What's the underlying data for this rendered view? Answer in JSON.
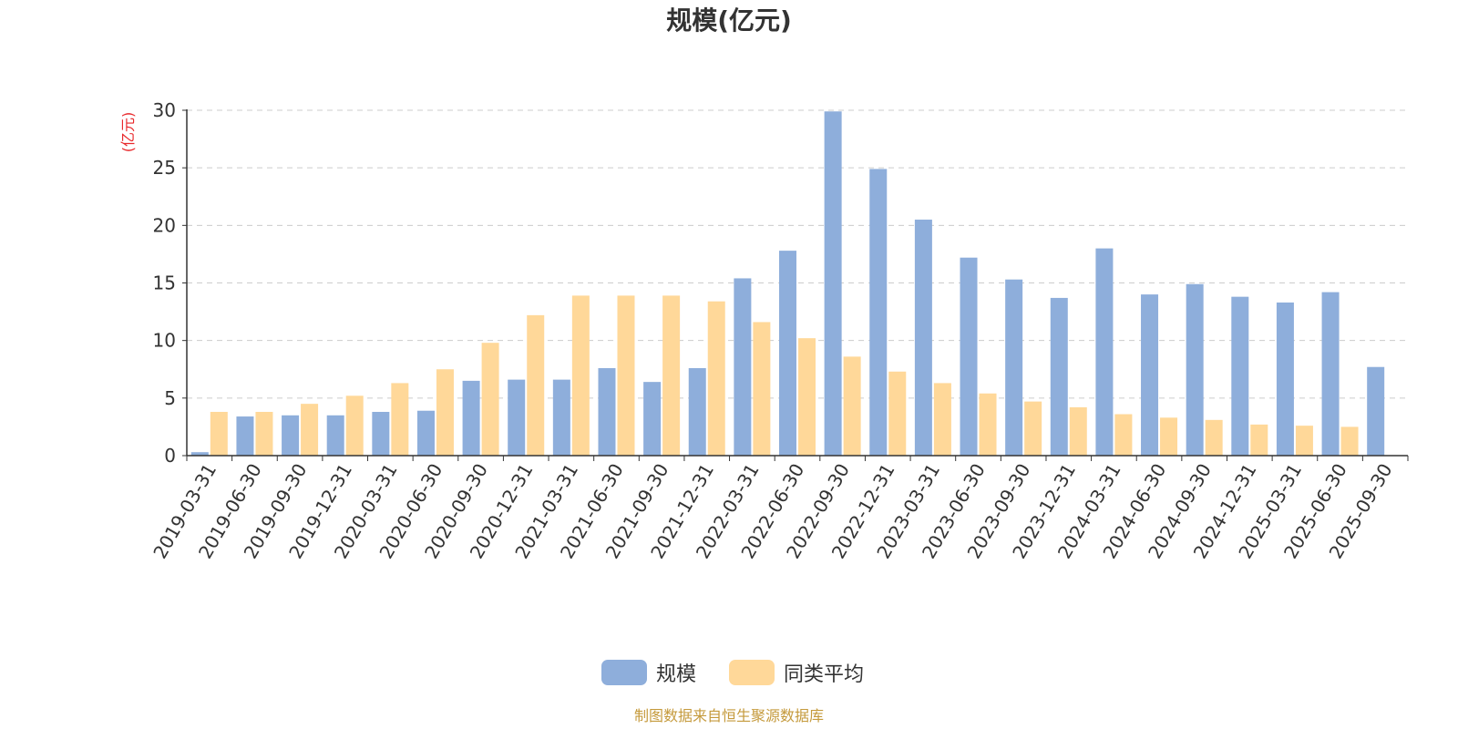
{
  "colors": {
    "primary": "#8EAEDB",
    "average": "#FFD899",
    "unit_label": "#E8282B",
    "source": "#C59A3C",
    "grid": "#CCCCCC",
    "axis": "#333333"
  },
  "chart_data": {
    "type": "bar",
    "title": "规模(亿元)",
    "ylabel": "(亿元)",
    "ylim": [
      0,
      30
    ],
    "yticks": [
      "0",
      "5",
      "10",
      "15",
      "20",
      "25",
      "30"
    ],
    "grid": true,
    "legend_position": "bottom-center",
    "categories": [
      "2019-03-31",
      "2019-06-30",
      "2019-09-30",
      "2019-12-31",
      "2020-03-31",
      "2020-06-30",
      "2020-09-30",
      "2020-12-31",
      "2021-03-31",
      "2021-06-30",
      "2021-09-30",
      "2021-12-31",
      "2022-03-31",
      "2022-06-30",
      "2022-09-30",
      "2022-12-31",
      "2023-03-31",
      "2023-06-30",
      "2023-09-30",
      "2023-12-31",
      "2024-03-31",
      "2024-06-30",
      "2024-09-30",
      "2024-12-31",
      "2025-03-31",
      "2025-06-30",
      "2025-09-30"
    ],
    "series": [
      {
        "name": "规模",
        "values": [
          0.3,
          3.4,
          3.5,
          3.5,
          3.8,
          3.9,
          6.5,
          6.6,
          6.6,
          7.6,
          6.4,
          7.6,
          15.4,
          17.8,
          29.9,
          24.9,
          20.5,
          17.2,
          15.3,
          13.7,
          18.0,
          14.0,
          14.9,
          13.8,
          13.3,
          14.2,
          7.7
        ]
      },
      {
        "name": "同类平均",
        "values": [
          3.8,
          3.8,
          4.5,
          5.2,
          6.3,
          7.5,
          9.8,
          12.2,
          13.9,
          13.9,
          13.9,
          13.4,
          11.6,
          10.2,
          8.6,
          7.3,
          6.3,
          5.4,
          4.7,
          4.2,
          3.6,
          3.3,
          3.1,
          2.7,
          2.6,
          2.5,
          null
        ]
      }
    ]
  },
  "footer": {
    "source": "制图数据来自恒生聚源数据库"
  }
}
